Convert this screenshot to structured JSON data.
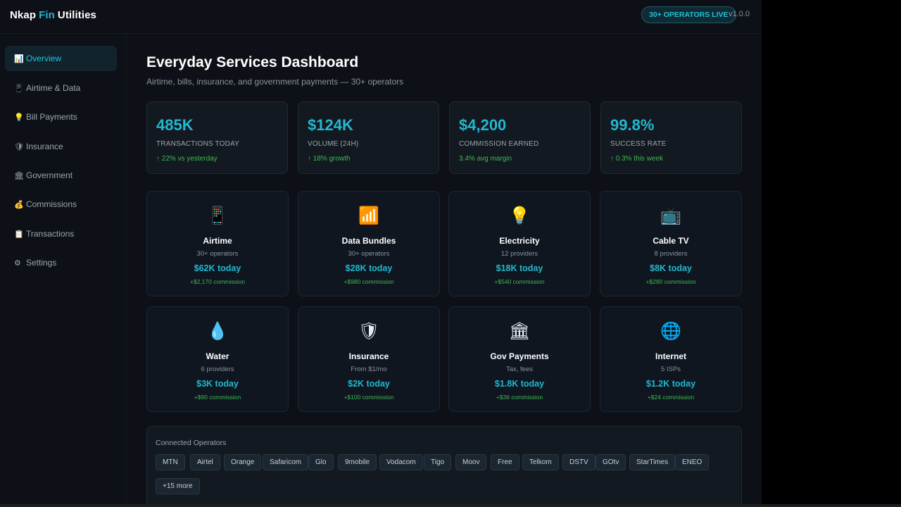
{
  "brand": {
    "part1": "Nkap",
    "part2": "Fin",
    "part3": "Utilities"
  },
  "header": {
    "badge": "30+ OPERATORS LIVE",
    "version": "v1.0.0"
  },
  "sidebar": {
    "items": [
      {
        "icon": "📊",
        "label": "Overview"
      },
      {
        "icon": "📱",
        "label": "Airtime & Data"
      },
      {
        "icon": "💡",
        "label": "Bill Payments"
      },
      {
        "icon": "🛡",
        "label": "Insurance"
      },
      {
        "icon": "🏛",
        "label": "Government"
      },
      {
        "icon": "💰",
        "label": "Commissions"
      },
      {
        "icon": "📋",
        "label": "Transactions"
      },
      {
        "icon": "⚙",
        "label": "Settings"
      }
    ]
  },
  "page": {
    "title": "Everyday Services Dashboard",
    "subtitle": "Airtime, bills, insurance, and government payments — 30+ operators"
  },
  "stats": [
    {
      "value": "485K",
      "label": "TRANSACTIONS TODAY",
      "change": "↑ 22% vs yesterday"
    },
    {
      "value": "$124K",
      "label": "VOLUME (24H)",
      "change": "↑ 18% growth"
    },
    {
      "value": "$4,200",
      "label": "COMMISSION EARNED",
      "change": "3.4% avg margin"
    },
    {
      "value": "99.8%",
      "label": "SUCCESS RATE",
      "change": "↑ 0.3% this week"
    }
  ],
  "services": [
    {
      "icon": "📱",
      "name": "Airtime",
      "sub": "30+ operators",
      "today": "$62K today",
      "commission": "+$2,170 commission"
    },
    {
      "icon": "📶",
      "name": "Data Bundles",
      "sub": "30+ operators",
      "today": "$28K today",
      "commission": "+$980 commission"
    },
    {
      "icon": "💡",
      "name": "Electricity",
      "sub": "12 providers",
      "today": "$18K today",
      "commission": "+$540 commission"
    },
    {
      "icon": "📺",
      "name": "Cable TV",
      "sub": "8 providers",
      "today": "$8K today",
      "commission": "+$280 commission"
    },
    {
      "icon": "💧",
      "name": "Water",
      "sub": "6 providers",
      "today": "$3K today",
      "commission": "+$90 commission"
    },
    {
      "icon": "🛡",
      "name": "Insurance",
      "sub": "From $1/mo",
      "today": "$2K today",
      "commission": "+$100 commission"
    },
    {
      "icon": "🏛",
      "name": "Gov Payments",
      "sub": "Tax, fees",
      "today": "$1.8K today",
      "commission": "+$36 commission"
    },
    {
      "icon": "🌐",
      "name": "Internet",
      "sub": "5 ISPs",
      "today": "$1.2K today",
      "commission": "+$24 commission"
    }
  ],
  "operators": {
    "title": "Connected Operators",
    "chips": [
      "MTN",
      "Airtel",
      "Orange",
      "Safaricom",
      "Glo",
      "9mobile",
      "Vodacom",
      "Tigo",
      "Moov",
      "Free",
      "Telkom",
      "DSTV",
      "GOtv",
      "StarTimes",
      "ENEO",
      "+15 more"
    ]
  },
  "colors": {
    "accent": "#22b8cf",
    "positive": "#3fb950",
    "background": "#0d1117"
  }
}
